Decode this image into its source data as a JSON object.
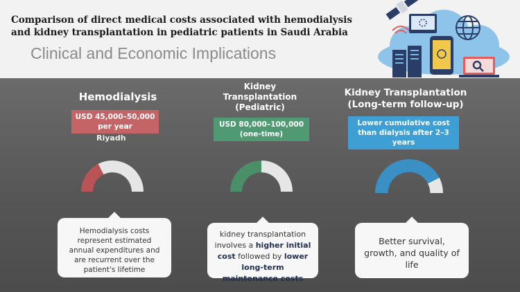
{
  "header": {
    "title": "Comparison of direct medical costs associated with hemodialysis and kidney transplantation in pediatric patients in Saudi Arabia",
    "subtitle": "Clinical and Economic Implications"
  },
  "columns": [
    {
      "title": "Hemodialysis",
      "badge": "USD 45,000–50,000 per year",
      "location": "Riyadh",
      "gauge_fraction": 0.35,
      "color": "#b95355",
      "callout": "Hemodialysis costs represent estimated annual expenditures and are recurrent over the patient's lifetime"
    },
    {
      "title": "Kidney Transplantation (Pediatric)",
      "badge": "USD 80,000–100,000 (one-time)",
      "gauge_fraction": 0.5,
      "color": "#4a8f68",
      "callout_parts": {
        "p1": "kidney transplantation involves a ",
        "b1": "higher initial cost",
        "p2": " followed by ",
        "b2": "lower long-term maintenance costs"
      }
    },
    {
      "title": "Kidney Transplantation (Long-term follow-up)",
      "badge": "Lower cumulative cost than dialysis after 2–3 years",
      "gauge_fraction": 0.85,
      "color": "#3a8fc5",
      "callout": "Better survival, growth, and quality of life"
    }
  ],
  "icons": [
    "satellite-icon",
    "globe-icon",
    "cloud-icon",
    "server-icon",
    "smartphone-icon",
    "laptop-icon",
    "search-icon",
    "wifi-icon"
  ]
}
